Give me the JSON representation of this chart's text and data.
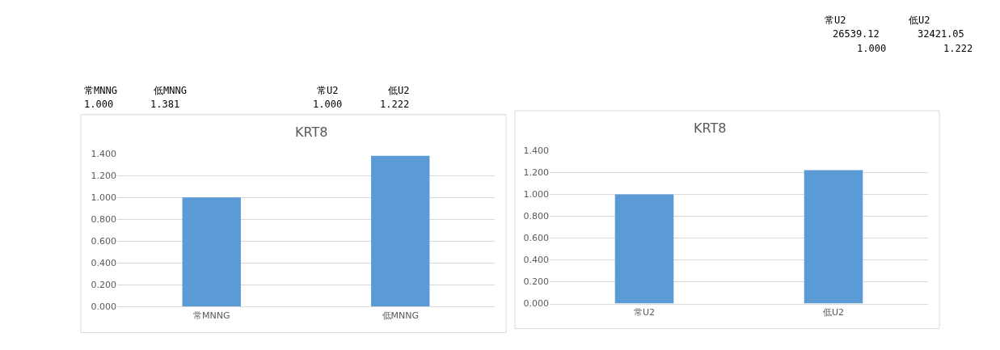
{
  "chart_data": [
    {
      "type": "bar",
      "title": "KRT8",
      "categories": [
        "常MNNG",
        "低MNNG"
      ],
      "values": [
        1.0,
        1.381
      ],
      "color": "#5b9bd5",
      "ylim": [
        0,
        1.4
      ],
      "yticks": [
        {
          "value": 0,
          "label": "0.000"
        },
        {
          "value": 0.2,
          "label": "0.200"
        },
        {
          "value": 0.4,
          "label": "0.400"
        },
        {
          "value": 0.6,
          "label": "0.600"
        },
        {
          "value": 0.8,
          "label": "0.800"
        },
        {
          "value": 1.0,
          "label": "1.000"
        },
        {
          "value": 1.2,
          "label": "1.200"
        },
        {
          "value": 1.4,
          "label": "1.400"
        }
      ],
      "grid": "y",
      "annotations": [
        "常MNNG",
        "低MNNG",
        "1.000",
        "1.381",
        "常U2",
        "低U2",
        "1.000",
        "1.222"
      ]
    },
    {
      "type": "bar",
      "title": "KRT8",
      "categories": [
        "常U2",
        "低U2"
      ],
      "values": [
        1.0,
        1.222
      ],
      "color": "#5b9bd5",
      "ylim": [
        0,
        1.4
      ],
      "yticks": [
        {
          "value": 0,
          "label": "0.000"
        },
        {
          "value": 0.2,
          "label": "0.200"
        },
        {
          "value": 0.4,
          "label": "0.400"
        },
        {
          "value": 0.6,
          "label": "0.600"
        },
        {
          "value": 0.8,
          "label": "0.800"
        },
        {
          "value": 1.0,
          "label": "1.000"
        },
        {
          "value": 1.2,
          "label": "1.200"
        },
        {
          "value": 1.4,
          "label": "1.400"
        }
      ],
      "grid": "y",
      "annotations": [
        "常U2",
        "低U2",
        "26539.12",
        "32421.05",
        "1.000",
        "1.222"
      ]
    }
  ]
}
